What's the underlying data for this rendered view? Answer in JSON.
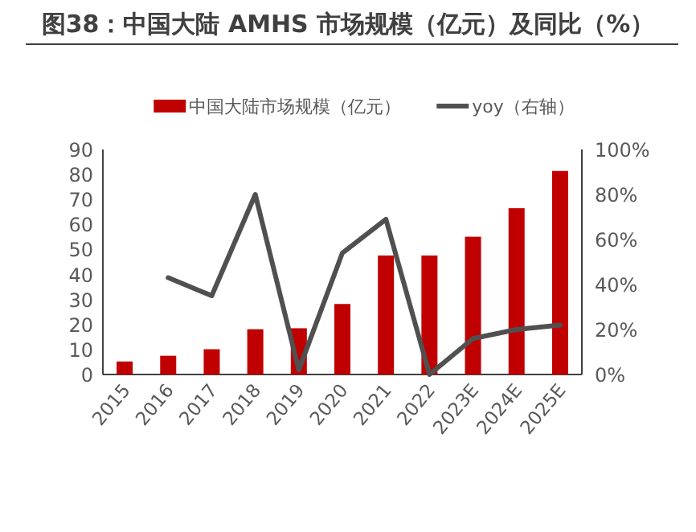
{
  "chart_data": {
    "type": "bar",
    "title": "图38：中国大陆 AMHS 市场规模（亿元）及同比（%）",
    "categories": [
      "2015",
      "2016",
      "2017",
      "2018",
      "2019",
      "2020",
      "2021",
      "2022",
      "2023E",
      "2024E",
      "2025E"
    ],
    "series": [
      {
        "name": "中国大陆市场规模（亿元）",
        "color": "#c00000",
        "values": [
          5.2,
          7.5,
          10.1,
          18.1,
          18.5,
          28.2,
          47.6,
          47.6,
          55.1,
          66.5,
          81.4
        ]
      },
      {
        "name": "yoy（右轴）",
        "type": "line",
        "axis": "y2",
        "color": "#505050",
        "values": [
          null,
          43,
          35,
          80,
          2,
          54,
          69,
          0,
          16,
          20,
          22
        ]
      }
    ],
    "ylim": [
      0,
      90
    ],
    "yticks": [
      0,
      10,
      20,
      30,
      40,
      50,
      60,
      70,
      80,
      90
    ],
    "y2lim": [
      0,
      100
    ],
    "y2ticks": [
      {
        "value": 0,
        "label": "0%"
      },
      {
        "value": 20,
        "label": "20%"
      },
      {
        "value": 40,
        "label": "40%"
      },
      {
        "value": 60,
        "label": "60%"
      },
      {
        "value": 80,
        "label": "80%"
      },
      {
        "value": 100,
        "label": "100%"
      }
    ],
    "legend": "top",
    "grid": false
  }
}
